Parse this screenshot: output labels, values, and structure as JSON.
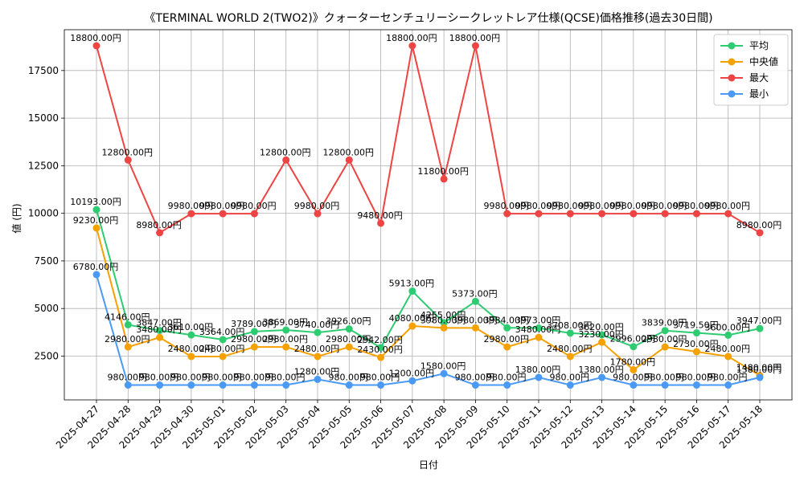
{
  "chart_data": {
    "type": "line",
    "title": "《TERMINAL WORLD 2(TWO2)》クォーターセンチュリーシークレットレア仕様(QCSE)価格推移(過去30日間)",
    "xlabel": "日付",
    "ylabel": "値 (円)",
    "ylim": [
      200,
      18800
    ],
    "yticks": [
      2500,
      5000,
      7500,
      10000,
      12500,
      15000,
      17500
    ],
    "grid": true,
    "legend_position": "top-right",
    "categories": [
      "2025-04-27",
      "2025-04-28",
      "2025-04-29",
      "2025-04-30",
      "2025-05-01",
      "2025-05-02",
      "2025-05-03",
      "2025-05-04",
      "2025-05-05",
      "2025-05-06",
      "2025-05-07",
      "2025-05-08",
      "2025-05-09",
      "2025-05-10",
      "2025-05-11",
      "2025-05-12",
      "2025-05-13",
      "2025-05-14",
      "2025-05-15",
      "2025-05-16",
      "2025-05-17",
      "2025-05-18"
    ],
    "series": [
      {
        "name": "平均",
        "color": "#2ecc71",
        "values": [
          10193,
          4146,
          3847,
          3610,
          3364,
          3789,
          3869,
          3740,
          3926,
          2942,
          5913,
          4255,
          5373,
          3984,
          3973,
          3708,
          3620,
          2996,
          3839,
          3719.5,
          3600,
          3947
        ],
        "labels": [
          "10193.00円",
          "4146.00円",
          "3847.00円",
          "3610.00円",
          "3364.00円",
          "3789.00円",
          "3869.00円",
          "3740.00円",
          "3926.00円",
          "2942.00円",
          "5913.00円",
          "4255.00円",
          "5373.00円",
          "3984.00円",
          "3973.00円",
          "3708.00円",
          "3620.00円",
          "2996.00円",
          "3839.00円",
          "3719.50円",
          "3600.00円",
          "3947.00円"
        ]
      },
      {
        "name": "中央値",
        "color": "#f5a100",
        "values": [
          9230,
          2980,
          3480,
          2480,
          2480,
          2980,
          2980,
          2480,
          2980,
          2430,
          4080,
          3980,
          3980,
          2980,
          3480,
          2480,
          3230,
          1780,
          2980,
          2730,
          2480,
          1480
        ],
        "labels": [
          "9230.00円",
          "2980.00円",
          "3480.00円",
          "2480.00円",
          "2480.00円",
          "2980.00円",
          "2980.00円",
          "2480.00円",
          "2980.00円",
          "2430.00円",
          "4080.00円",
          "3980.00円",
          "3980.00円",
          "2980.00円",
          "3480.00円",
          "2480.00円",
          "3230.00円",
          "1780.00円",
          "2980.00円",
          "2730.00円",
          "2480.00円",
          "1480.00円"
        ]
      },
      {
        "name": "最大",
        "color": "#ef4444",
        "values": [
          18800,
          12800,
          8980,
          9980,
          9980,
          9980,
          12800,
          9980,
          12800,
          9480,
          18800,
          11800,
          18800,
          9980,
          9980,
          9980,
          9980,
          9980,
          9980,
          9980,
          9980,
          8980
        ],
        "labels": [
          "18800.00円",
          "12800.00円",
          "8980.00円",
          "9980.00円",
          "9980.00円",
          "9980.00円",
          "12800.00円",
          "9980.00円",
          "12800.00円",
          "9480.00円",
          "18800.00円",
          "11800.00円",
          "18800.00円",
          "9980.00円",
          "9980.00円",
          "9980.00円",
          "9980.00円",
          "9980.00円",
          "9980.00円",
          "9980.00円",
          "9980.00円",
          "8980.00円"
        ]
      },
      {
        "name": "最小",
        "color": "#4a9af5",
        "values": [
          6780,
          980,
          980,
          980,
          980,
          980,
          980,
          1280,
          980,
          980,
          1200,
          1580,
          980,
          980,
          1380,
          980,
          1380,
          980,
          980,
          980,
          980,
          1380
        ],
        "labels": [
          "6780.00円",
          "980.00円",
          "980.00円",
          "980.00円",
          "980.00円",
          "980.00円",
          "980.00円",
          "1280.00円",
          "980.00円",
          "980.00円",
          "1200.00円",
          "1580.00円",
          "980.00円",
          "980.00円",
          "1380.00円",
          "980.00円",
          "1380.00円",
          "980.00円",
          "980.00円",
          "980.00円",
          "980.00円",
          "1380.00円"
        ]
      }
    ]
  }
}
